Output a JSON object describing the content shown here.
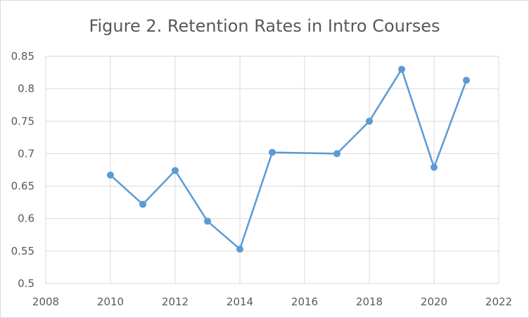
{
  "chart_data": {
    "type": "scatter",
    "mode": "lines+markers",
    "title": "Figure 2. Retention Rates in Intro Courses",
    "xlabel": "",
    "ylabel": "",
    "xlim": [
      2008,
      2022
    ],
    "ylim": [
      0.5,
      0.85
    ],
    "x_ticks": [
      2008,
      2010,
      2012,
      2014,
      2016,
      2018,
      2020,
      2022
    ],
    "y_ticks": [
      "0.5",
      "0.55",
      "0.6",
      "0.65",
      "0.7",
      "0.75",
      "0.8",
      "0.85"
    ],
    "grid": true,
    "legend": "none",
    "color": "#5b9bd5",
    "series": [
      {
        "x": [
          2010,
          2011,
          2012,
          2013,
          2014,
          2015,
          2017,
          2018,
          2019,
          2020,
          2021
        ],
        "y": [
          0.667,
          0.622,
          0.674,
          0.596,
          0.553,
          0.702,
          0.7,
          0.75,
          0.83,
          0.679,
          0.813
        ]
      }
    ]
  }
}
